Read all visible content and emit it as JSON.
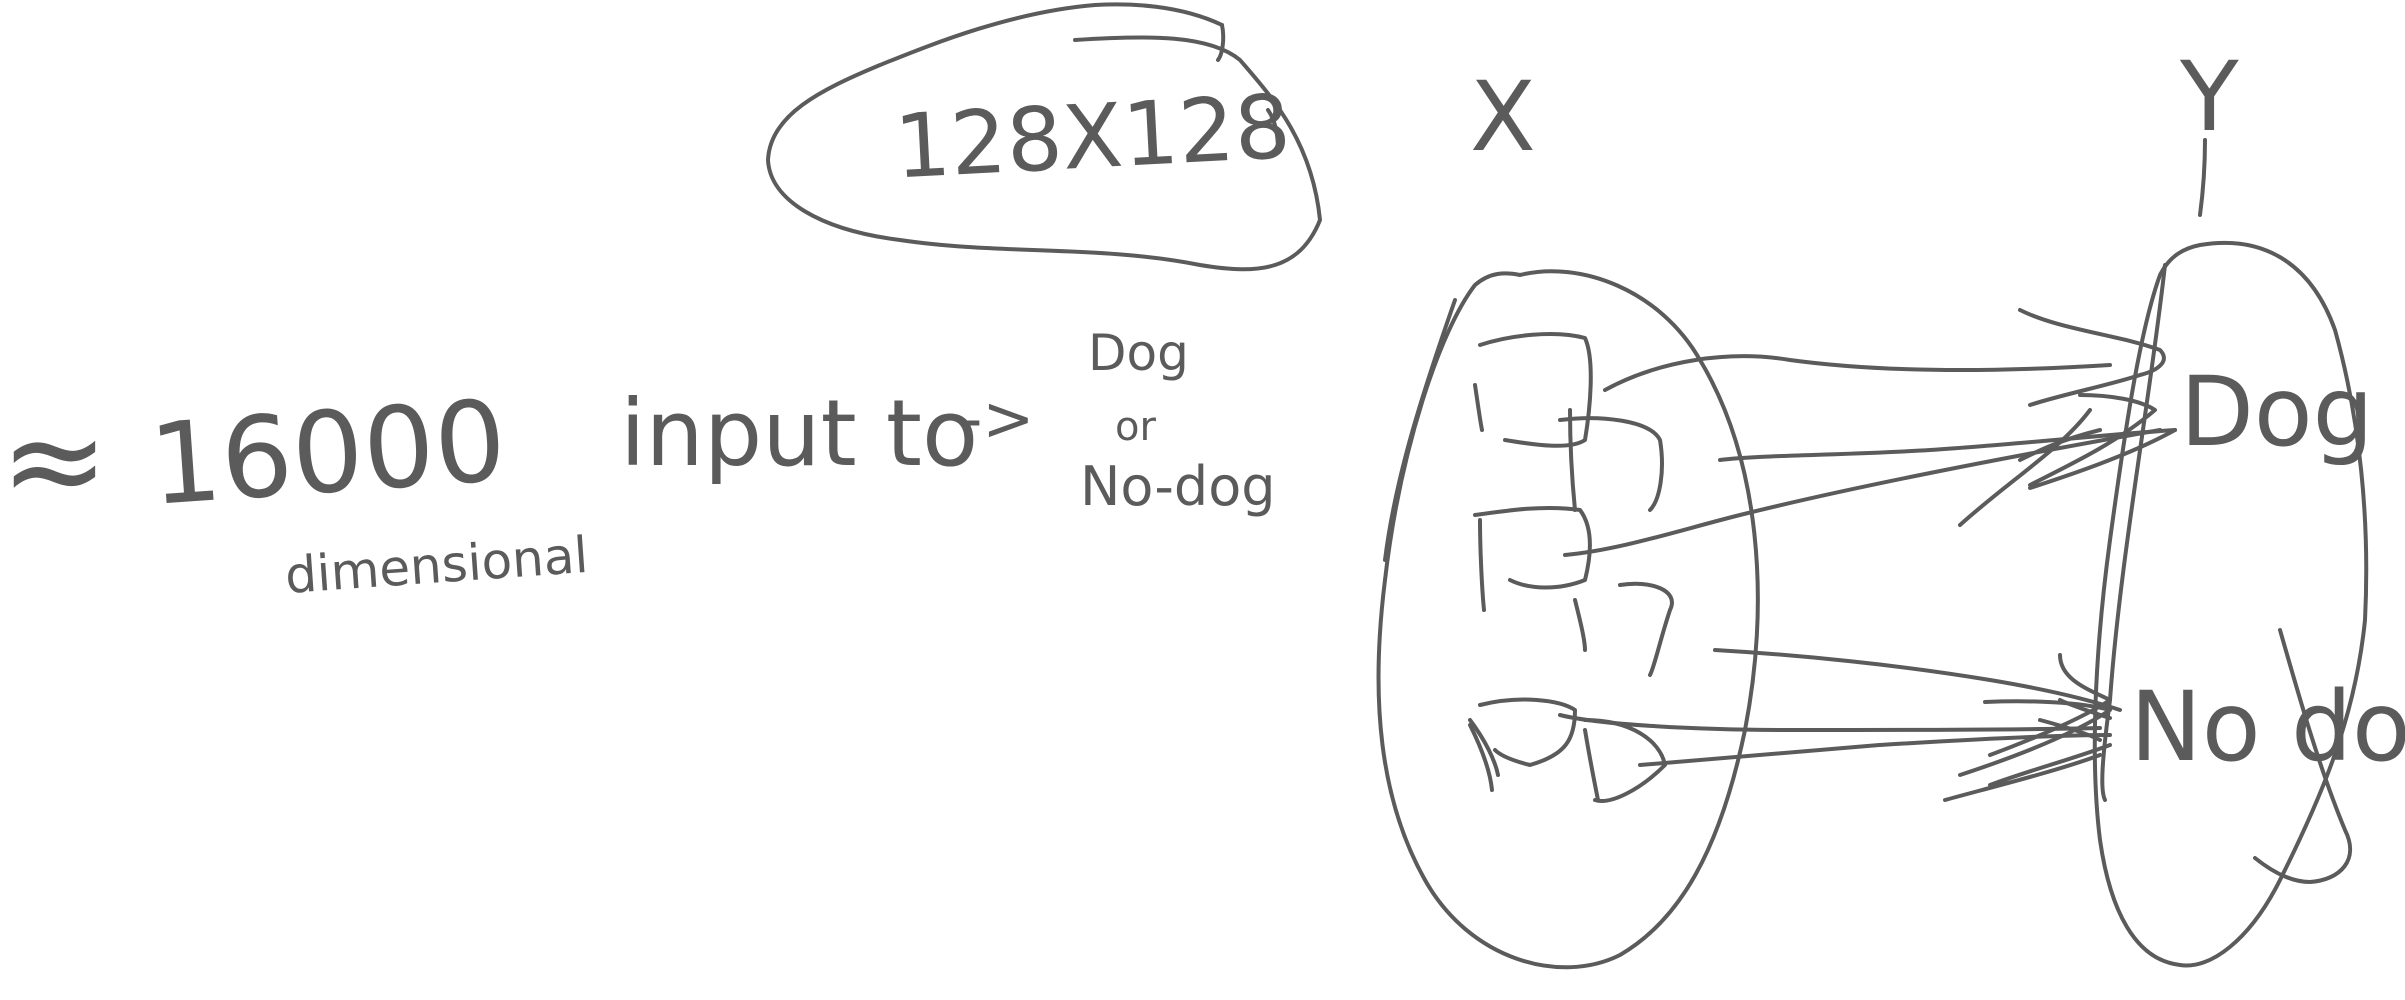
{
  "labels": {
    "image_size": "128X128",
    "approx_symbol": "≈",
    "dimension_count": "16000",
    "dimension_word": "dimensional",
    "input_to": "input to",
    "arrow": "->",
    "class_dog": "Dog",
    "class_or": "or",
    "class_nodog": "No-dog",
    "set_x": "X",
    "set_y": "Y",
    "y_dog": "Dog",
    "y_nodog": "No dog"
  },
  "colors": {
    "ink": "#5b5b5b",
    "background": "#ffffff"
  }
}
